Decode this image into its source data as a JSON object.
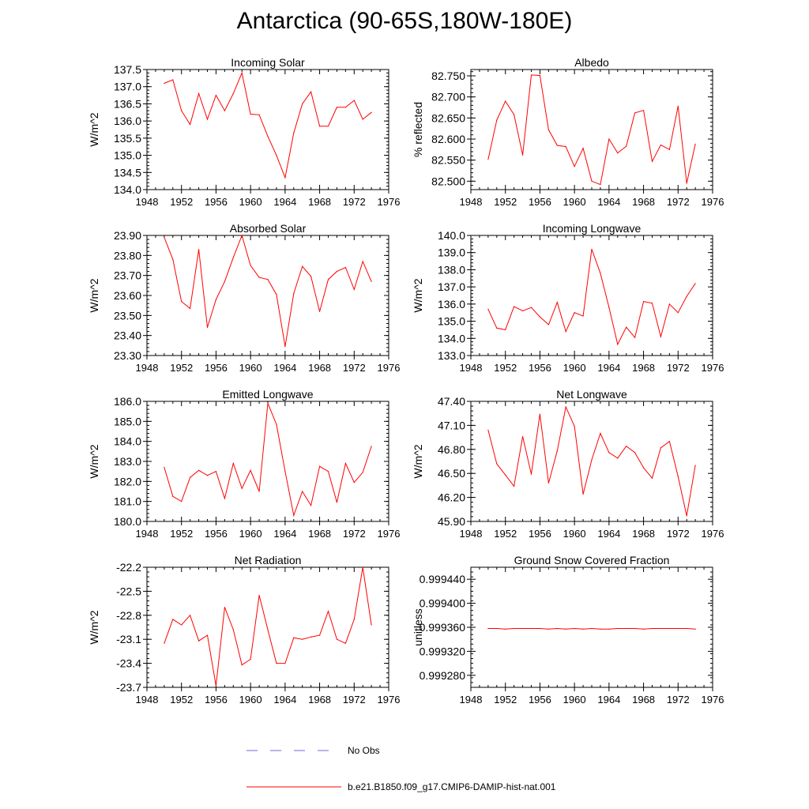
{
  "page": {
    "title": "Antarctica (90-65S,180W-180E)"
  },
  "colors": {
    "model_line": "#ff0000",
    "obs_line": "#6b6bd6",
    "axis": "#000000"
  },
  "legend": {
    "obs_label": "No Obs",
    "model_label": "b.e21.B1850.f09_g17.CMIP6-DAMIP-hist-nat.001"
  },
  "chart_data": [
    {
      "type": "line",
      "title": "Incoming Solar",
      "ylabel": "W/m^2",
      "xlim": [
        1948,
        1976
      ],
      "ylim": [
        134.0,
        137.5
      ],
      "xticks": [
        1948,
        1952,
        1956,
        1960,
        1964,
        1968,
        1972,
        1976
      ],
      "yticks": [
        "134.0",
        "134.5",
        "135.0",
        "135.5",
        "136.0",
        "136.5",
        "137.0",
        "137.5"
      ],
      "x": [
        1950,
        1951,
        1952,
        1953,
        1954,
        1955,
        1956,
        1957,
        1958,
        1959,
        1960,
        1961,
        1962,
        1963,
        1964,
        1965,
        1966,
        1967,
        1968,
        1969,
        1970,
        1971,
        1972,
        1973,
        1974
      ],
      "y": [
        137.1,
        137.2,
        136.3,
        135.9,
        136.8,
        136.05,
        136.75,
        136.3,
        136.8,
        137.4,
        136.2,
        136.18,
        135.55,
        135.0,
        134.35,
        135.65,
        136.5,
        136.85,
        135.85,
        135.85,
        136.4,
        136.4,
        136.6,
        136.05,
        136.25
      ]
    },
    {
      "type": "line",
      "title": "Albedo",
      "ylabel": "% reflected",
      "xlim": [
        1948,
        1976
      ],
      "ylim": [
        82.48,
        82.765
      ],
      "xticks": [
        1948,
        1952,
        1956,
        1960,
        1964,
        1968,
        1972,
        1976
      ],
      "yticks": [
        "82.500",
        "82.550",
        "82.600",
        "82.650",
        "82.700",
        "82.750"
      ],
      "x": [
        1950,
        1951,
        1952,
        1953,
        1954,
        1955,
        1956,
        1957,
        1958,
        1959,
        1960,
        1961,
        1962,
        1963,
        1964,
        1965,
        1966,
        1967,
        1968,
        1969,
        1970,
        1971,
        1972,
        1973,
        1974
      ],
      "y": [
        82.552,
        82.645,
        82.69,
        82.658,
        82.562,
        82.752,
        82.751,
        82.622,
        82.585,
        82.582,
        82.535,
        82.578,
        82.5,
        82.492,
        82.6,
        82.567,
        82.583,
        82.662,
        82.668,
        82.547,
        82.586,
        82.575,
        82.678,
        82.495,
        82.588
      ]
    },
    {
      "type": "line",
      "title": "Absorbed Solar",
      "ylabel": "W/m^2",
      "xlim": [
        1948,
        1976
      ],
      "ylim": [
        23.3,
        23.9
      ],
      "xticks": [
        1948,
        1952,
        1956,
        1960,
        1964,
        1968,
        1972,
        1976
      ],
      "yticks": [
        "23.30",
        "23.40",
        "23.50",
        "23.60",
        "23.70",
        "23.80",
        "23.90"
      ],
      "x": [
        1950,
        1951,
        1952,
        1953,
        1954,
        1955,
        1956,
        1957,
        1958,
        1959,
        1960,
        1961,
        1962,
        1963,
        1964,
        1965,
        1966,
        1967,
        1968,
        1969,
        1970,
        1971,
        1972,
        1973,
        1974
      ],
      "y": [
        23.89,
        23.78,
        23.57,
        23.535,
        23.83,
        23.44,
        23.58,
        23.67,
        23.79,
        23.9,
        23.75,
        23.69,
        23.68,
        23.605,
        23.345,
        23.61,
        23.745,
        23.695,
        23.52,
        23.68,
        23.72,
        23.74,
        23.63,
        23.77,
        23.67
      ]
    },
    {
      "type": "line",
      "title": "Incoming Longwave",
      "ylabel": "W/m^2",
      "xlim": [
        1948,
        1976
      ],
      "ylim": [
        133.0,
        140.0
      ],
      "xticks": [
        1948,
        1952,
        1956,
        1960,
        1964,
        1968,
        1972,
        1976
      ],
      "yticks": [
        "133.0",
        "134.0",
        "135.0",
        "136.0",
        "137.0",
        "138.0",
        "139.0",
        "140.0"
      ],
      "x": [
        1950,
        1951,
        1952,
        1953,
        1954,
        1955,
        1956,
        1957,
        1958,
        1959,
        1960,
        1961,
        1962,
        1963,
        1964,
        1965,
        1966,
        1967,
        1968,
        1969,
        1970,
        1971,
        1972,
        1973,
        1974
      ],
      "y": [
        135.7,
        134.6,
        134.5,
        135.85,
        135.6,
        135.8,
        135.25,
        134.8,
        136.1,
        134.4,
        135.5,
        135.3,
        139.2,
        137.8,
        135.8,
        133.65,
        134.65,
        134.05,
        136.15,
        136.05,
        134.1,
        136.0,
        135.5,
        136.45,
        137.2
      ]
    },
    {
      "type": "line",
      "title": "Emitted Longwave",
      "ylabel": "W/m^2",
      "xlim": [
        1948,
        1976
      ],
      "ylim": [
        180.0,
        186.0
      ],
      "xticks": [
        1948,
        1952,
        1956,
        1960,
        1964,
        1968,
        1972,
        1976
      ],
      "yticks": [
        "180.0",
        "181.0",
        "182.0",
        "183.0",
        "184.0",
        "185.0",
        "186.0"
      ],
      "x": [
        1950,
        1951,
        1952,
        1953,
        1954,
        1955,
        1956,
        1957,
        1958,
        1959,
        1960,
        1961,
        1962,
        1963,
        1964,
        1965,
        1966,
        1967,
        1968,
        1969,
        1970,
        1971,
        1972,
        1973,
        1974
      ],
      "y": [
        182.7,
        181.25,
        181.0,
        182.2,
        182.55,
        182.3,
        182.5,
        181.15,
        182.9,
        181.65,
        182.55,
        181.5,
        185.9,
        184.85,
        182.5,
        180.3,
        181.5,
        180.8,
        182.75,
        182.5,
        180.95,
        182.9,
        181.95,
        182.45,
        183.75
      ]
    },
    {
      "type": "line",
      "title": "Net Longwave",
      "ylabel": "W/m^2",
      "xlim": [
        1948,
        1976
      ],
      "ylim": [
        45.9,
        47.4
      ],
      "xticks": [
        1948,
        1952,
        1956,
        1960,
        1964,
        1968,
        1972,
        1976
      ],
      "yticks": [
        "45.90",
        "46.20",
        "46.50",
        "46.80",
        "47.10",
        "47.40"
      ],
      "x": [
        1950,
        1951,
        1952,
        1953,
        1954,
        1955,
        1956,
        1957,
        1958,
        1959,
        1960,
        1961,
        1962,
        1963,
        1964,
        1965,
        1966,
        1967,
        1968,
        1969,
        1970,
        1971,
        1972,
        1973,
        1974
      ],
      "y": [
        47.04,
        46.62,
        46.48,
        46.34,
        46.96,
        46.49,
        47.24,
        46.38,
        46.78,
        47.33,
        47.09,
        46.24,
        46.67,
        47.0,
        46.76,
        46.69,
        46.84,
        46.76,
        46.57,
        46.44,
        46.82,
        46.9,
        46.46,
        45.97,
        46.6
      ]
    },
    {
      "type": "line",
      "title": "Net Radiation",
      "ylabel": "W/m^2",
      "xlim": [
        1948,
        1976
      ],
      "ylim": [
        -23.7,
        -22.2
      ],
      "xticks": [
        1948,
        1952,
        1956,
        1960,
        1964,
        1968,
        1972,
        1976
      ],
      "yticks": [
        "-23.7",
        "-23.4",
        "-23.1",
        "-22.8",
        "-22.5",
        "-22.2"
      ],
      "x": [
        1950,
        1951,
        1952,
        1953,
        1954,
        1955,
        1956,
        1957,
        1958,
        1959,
        1960,
        1961,
        1962,
        1963,
        1964,
        1965,
        1966,
        1967,
        1968,
        1969,
        1970,
        1971,
        1972,
        1973,
        1974
      ],
      "y": [
        -23.15,
        -22.85,
        -22.92,
        -22.8,
        -23.12,
        -23.05,
        -23.68,
        -22.7,
        -22.98,
        -23.42,
        -23.35,
        -22.55,
        -22.98,
        -23.4,
        -23.4,
        -23.08,
        -23.1,
        -23.07,
        -23.05,
        -22.75,
        -23.1,
        -23.15,
        -22.85,
        -22.2,
        -22.92
      ]
    },
    {
      "type": "line",
      "title": "Ground Snow Covered Fraction",
      "ylabel": "unitless",
      "xlim": [
        1948,
        1976
      ],
      "ylim": [
        0.99926,
        0.99946
      ],
      "xticks": [
        1948,
        1952,
        1956,
        1960,
        1964,
        1968,
        1972,
        1976
      ],
      "yticks": [
        "0.999280",
        "0.999320",
        "0.999360",
        "0.999400",
        "0.999440"
      ],
      "x": [
        1950,
        1951,
        1952,
        1953,
        1954,
        1955,
        1956,
        1957,
        1958,
        1959,
        1960,
        1961,
        1962,
        1963,
        1964,
        1965,
        1966,
        1967,
        1968,
        1969,
        1970,
        1971,
        1972,
        1973,
        1974
      ],
      "y": [
        0.999358,
        0.999358,
        0.999357,
        0.999358,
        0.999358,
        0.999358,
        0.999358,
        0.999357,
        0.999358,
        0.999357,
        0.999358,
        0.999357,
        0.999358,
        0.999357,
        0.999357,
        0.999358,
        0.999358,
        0.999358,
        0.999357,
        0.999358,
        0.999358,
        0.999358,
        0.999358,
        0.999358,
        0.999357
      ]
    }
  ]
}
